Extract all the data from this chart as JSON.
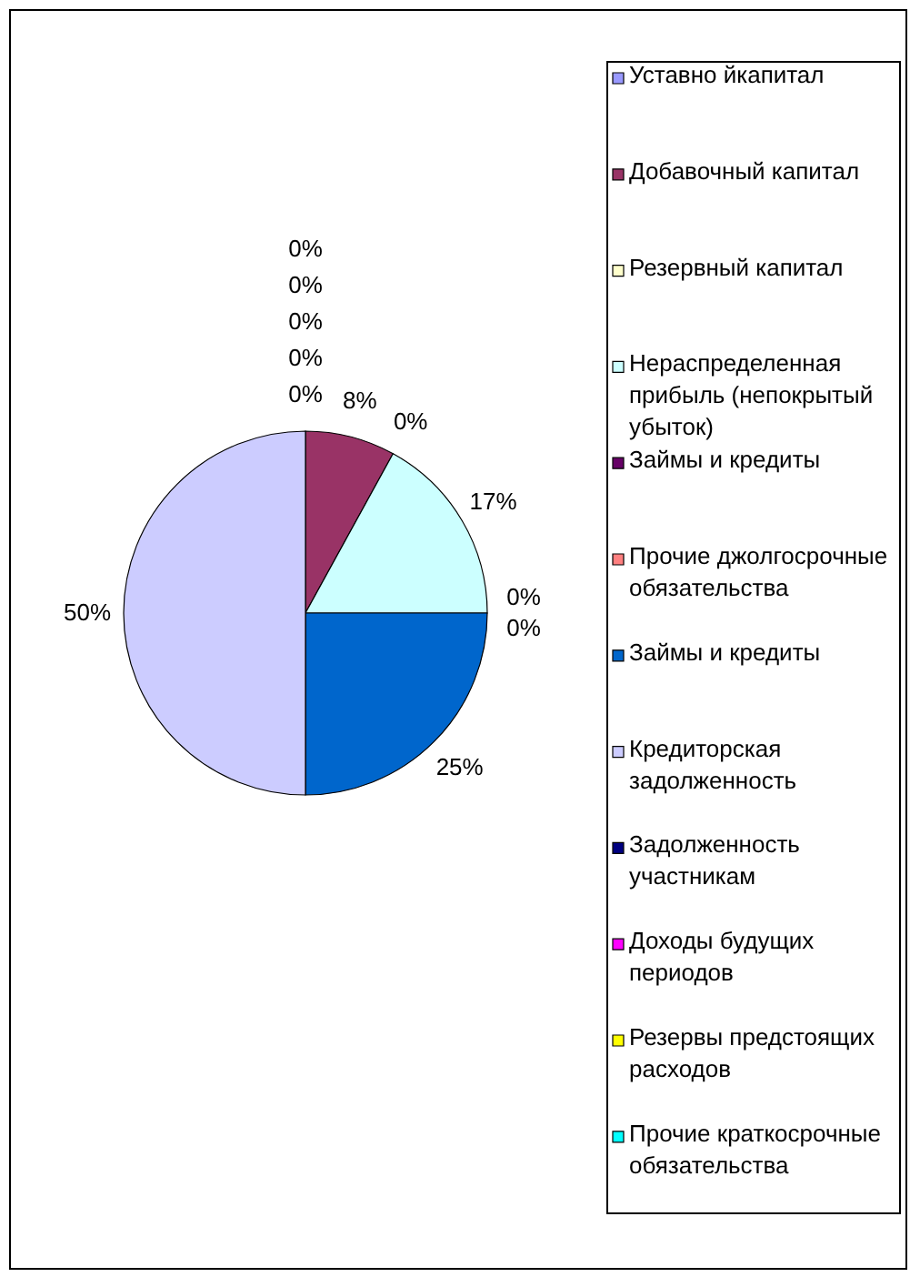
{
  "chart_data": {
    "type": "pie",
    "categories": [
      "Уставно йкапитал",
      "Добавочный капитал",
      "Резервный капитал",
      "Нераспределенная прибыль (непокрытый убыток)",
      "Займы и кредиты",
      "Прочие джолгосрочные обязательства",
      "Займы и кредиты",
      "Кредиторская задолженность",
      "Задолженность участникам",
      "Доходы будущих периодов",
      "Резервы предстоящих расходов",
      "Прочие краткосрочные обязательства"
    ],
    "values": [
      0,
      8,
      0,
      17,
      0,
      0,
      25,
      50,
      0,
      0,
      0,
      0
    ],
    "colors": [
      "#9999ff",
      "#993366",
      "#ffffcc",
      "#ccffff",
      "#660066",
      "#ff8080",
      "#0066cc",
      "#ccccff",
      "#000080",
      "#ff00ff",
      "#ffff00",
      "#00ffff"
    ],
    "value_labels": [
      "0%",
      "8%",
      "0%",
      "17%",
      "0%",
      "0%",
      "25%",
      "50%",
      "0%",
      "0%",
      "0%",
      "0%"
    ],
    "legend": "right"
  }
}
